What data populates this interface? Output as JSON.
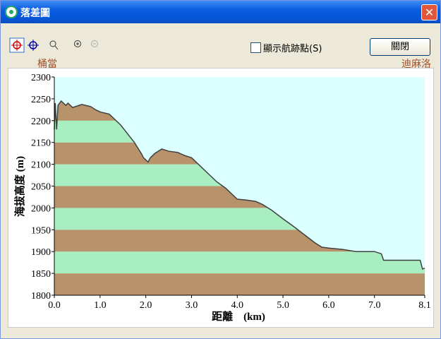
{
  "window": {
    "title": "落差圖",
    "checkbox_label": "顯示航跡點(S)",
    "close_button": "關閉",
    "start_label": "桶當",
    "end_label": "迪麻洛"
  },
  "chart_data": {
    "type": "area",
    "xlabel": "距離　(km)",
    "ylabel": "海拔高度 (m)",
    "x": [
      0.0,
      0.02,
      0.05,
      0.08,
      0.15,
      0.25,
      0.3,
      0.4,
      0.6,
      0.8,
      0.9,
      1.0,
      1.2,
      1.3,
      1.45,
      1.6,
      1.75,
      1.9,
      1.95,
      2.05,
      2.1,
      2.2,
      2.35,
      2.5,
      2.7,
      2.85,
      3.0,
      3.2,
      3.45,
      3.55,
      3.75,
      3.9,
      4.0,
      4.2,
      4.4,
      4.55,
      4.75,
      5.0,
      5.2,
      5.45,
      5.7,
      5.85,
      6.0,
      6.3,
      6.6,
      7.0,
      7.15,
      7.2,
      7.5,
      8.0,
      8.05,
      8.1
    ],
    "values": [
      2180,
      2240,
      2180,
      2235,
      2245,
      2235,
      2240,
      2230,
      2237,
      2232,
      2225,
      2220,
      2215,
      2205,
      2190,
      2170,
      2150,
      2125,
      2115,
      2105,
      2115,
      2125,
      2135,
      2130,
      2127,
      2120,
      2115,
      2095,
      2070,
      2060,
      2045,
      2030,
      2020,
      2018,
      2015,
      2008,
      1995,
      1975,
      1960,
      1940,
      1920,
      1910,
      1908,
      1905,
      1900,
      1900,
      1895,
      1880,
      1880,
      1880,
      1860,
      1862
    ],
    "xlim": [
      0,
      8.1
    ],
    "ylim": [
      1800,
      2300
    ],
    "xticks": [
      {
        "value": 0,
        "label": "0.0"
      },
      {
        "value": 1,
        "label": "1.0"
      },
      {
        "value": 2,
        "label": "2.0"
      },
      {
        "value": 3,
        "label": "3.0"
      },
      {
        "value": 4,
        "label": "4.0"
      },
      {
        "value": 5,
        "label": "5.0"
      },
      {
        "value": 6,
        "label": "6.0"
      },
      {
        "value": 7,
        "label": "7.0"
      },
      8.1
    ],
    "yticks": [
      1800,
      1850,
      1900,
      1950,
      2000,
      2050,
      2100,
      2150,
      2200,
      2250,
      2300
    ],
    "color": "#404040",
    "sky_color": "#dcffff",
    "band_colors": [
      "#b8926a",
      "#a8eec0"
    ]
  }
}
